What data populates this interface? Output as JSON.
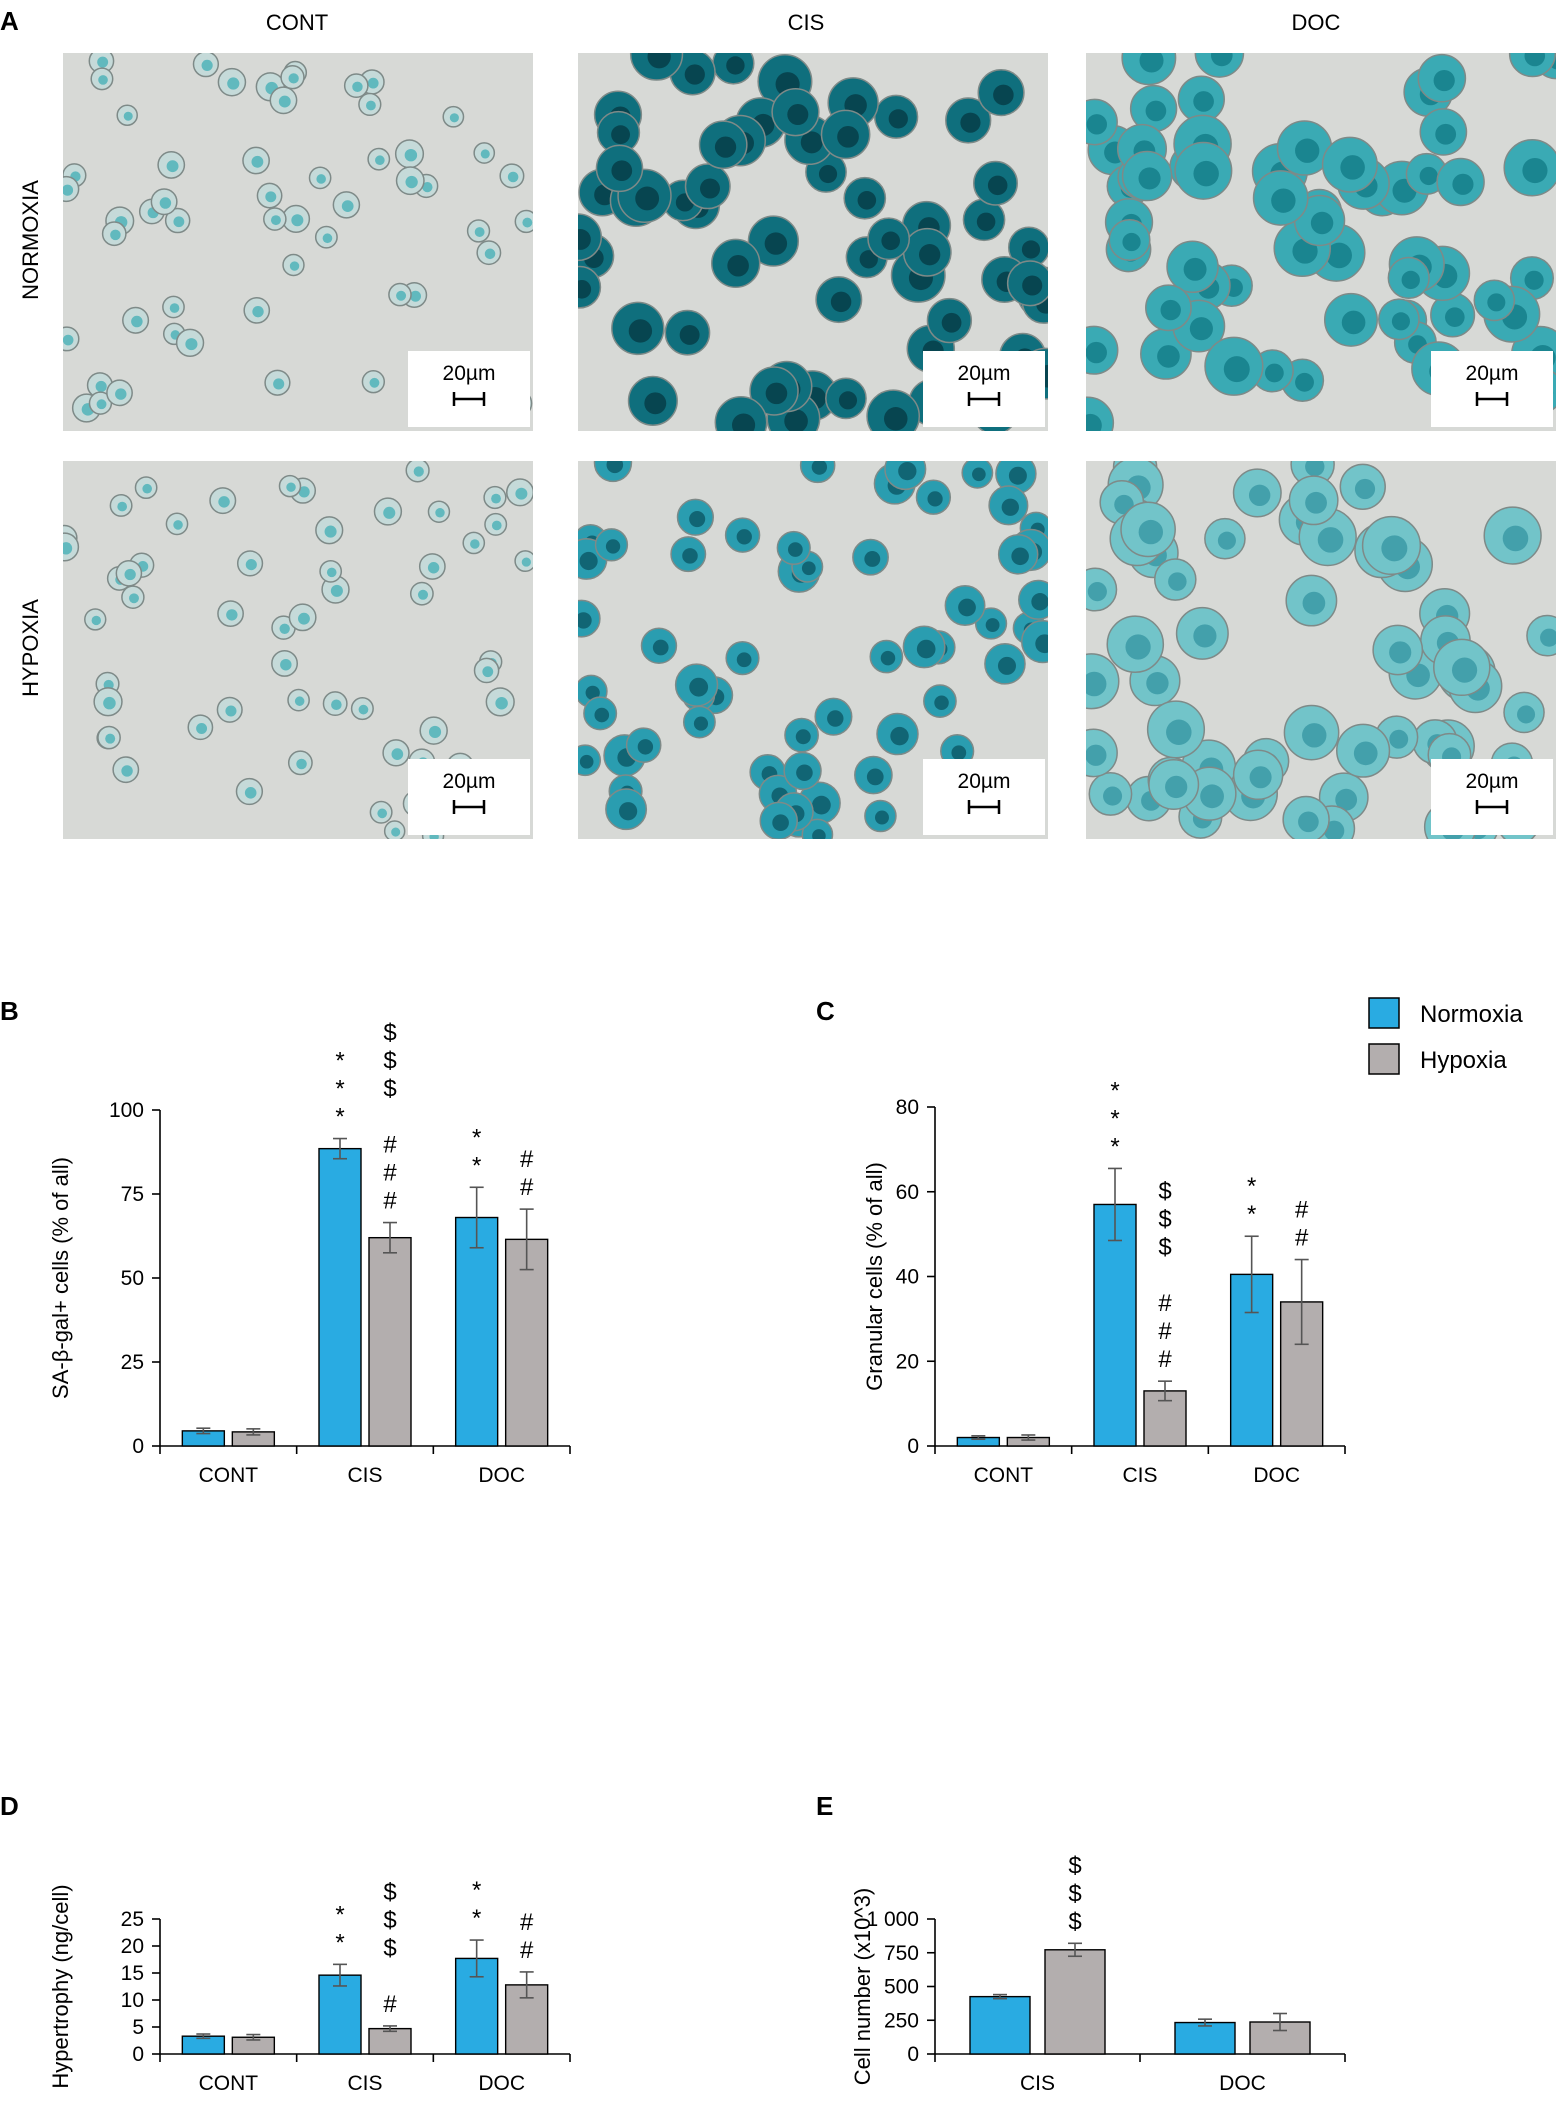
{
  "panel_a": {
    "letter": "A",
    "columns": [
      "CONT",
      "CIS",
      "DOC"
    ],
    "rows": [
      "NORMOXIA",
      "HYPOXIA"
    ],
    "scale_bar": "20µm"
  },
  "legend": {
    "entries": [
      "Normoxia",
      "Hypoxia"
    ]
  },
  "colors": {
    "normoxia": "#29ABE2",
    "hypoxia": "#B3AEAE",
    "stain_dark": "#0a4f5c",
    "stain_light": "#6cc4c9",
    "background_img": "#d7d9d6"
  },
  "chart_data": [
    {
      "id": "B",
      "letter": "B",
      "type": "bar",
      "ylabel": "SA-β-gal+ cells (% of all)",
      "categories": [
        "CONT",
        "CIS",
        "DOC"
      ],
      "ylim": [
        0,
        100
      ],
      "yticks": [
        0,
        25,
        50,
        75,
        100
      ],
      "ytick_labels": [
        "0",
        "25",
        "50",
        "75",
        "100"
      ],
      "series": [
        {
          "name": "Normoxia",
          "values": [
            4.5,
            88.5,
            68
          ],
          "errors": [
            0.8,
            3,
            9
          ]
        },
        {
          "name": "Hypoxia",
          "values": [
            4.2,
            62,
            61.5
          ],
          "errors": [
            0.9,
            4.5,
            9
          ]
        }
      ],
      "annotations": [
        {
          "cat": 1,
          "series": 0,
          "symbols": [
            "*",
            "*",
            "*"
          ]
        },
        {
          "cat": 1,
          "series": 1,
          "symbols": [
            "$",
            "$",
            "$",
            "",
            "#",
            "#",
            "#"
          ]
        },
        {
          "cat": 2,
          "series": 0,
          "symbols": [
            "*",
            "*"
          ]
        },
        {
          "cat": 2,
          "series": 1,
          "symbols": [
            "#",
            "#"
          ]
        }
      ]
    },
    {
      "id": "C",
      "letter": "C",
      "type": "bar",
      "ylabel": "Granular cells (% of all)",
      "categories": [
        "CONT",
        "CIS",
        "DOC"
      ],
      "ylim": [
        0,
        80
      ],
      "yticks": [
        0,
        20,
        40,
        60,
        80
      ],
      "ytick_labels": [
        "0",
        "20",
        "40",
        "60",
        "80"
      ],
      "series": [
        {
          "name": "Normoxia",
          "values": [
            2,
            57,
            40.5
          ],
          "errors": [
            0.4,
            8.5,
            9
          ]
        },
        {
          "name": "Hypoxia",
          "values": [
            2,
            13,
            34
          ],
          "errors": [
            0.6,
            2.3,
            10
          ]
        }
      ],
      "annotations": [
        {
          "cat": 1,
          "series": 0,
          "symbols": [
            "*",
            "*",
            "*"
          ]
        },
        {
          "cat": 1,
          "series": 1,
          "symbols": [
            "$",
            "$",
            "$",
            "",
            "#",
            "#",
            "#"
          ]
        },
        {
          "cat": 2,
          "series": 0,
          "symbols": [
            "*",
            "*"
          ]
        },
        {
          "cat": 2,
          "series": 1,
          "symbols": [
            "#",
            "#"
          ]
        }
      ]
    },
    {
      "id": "D",
      "letter": "D",
      "type": "bar",
      "ylabel": "Hypertrophy (ng/cell)",
      "categories": [
        "CONT",
        "CIS",
        "DOC"
      ],
      "ylim": [
        0,
        25
      ],
      "yticks": [
        0,
        5,
        10,
        15,
        20,
        25
      ],
      "ytick_labels": [
        "0",
        "5",
        "10",
        "15",
        "20",
        "25"
      ],
      "series": [
        {
          "name": "Normoxia",
          "values": [
            3.3,
            14.6,
            17.7
          ],
          "errors": [
            0.4,
            2,
            3.4
          ]
        },
        {
          "name": "Hypoxia",
          "values": [
            3.1,
            4.7,
            12.8
          ],
          "errors": [
            0.5,
            0.5,
            2.4
          ]
        }
      ],
      "annotations": [
        {
          "cat": 1,
          "series": 0,
          "symbols": [
            "*",
            "*"
          ]
        },
        {
          "cat": 1,
          "series": 1,
          "symbols": [
            "$",
            "$",
            "$",
            "",
            "#"
          ]
        },
        {
          "cat": 2,
          "series": 0,
          "symbols": [
            "*",
            "*"
          ]
        },
        {
          "cat": 2,
          "series": 1,
          "symbols": [
            "#",
            "#"
          ]
        }
      ]
    },
    {
      "id": "E",
      "letter": "E",
      "type": "bar",
      "ylabel": "Cell number (x10^3)",
      "categories": [
        "CIS",
        "DOC"
      ],
      "ylim": [
        0,
        1000
      ],
      "yticks": [
        0,
        250,
        500,
        750,
        1000
      ],
      "ytick_labels": [
        "0",
        "250",
        "500",
        "750",
        "1 000"
      ],
      "series": [
        {
          "name": "Normoxia",
          "values": [
            425,
            233
          ],
          "errors": [
            15,
            25
          ]
        },
        {
          "name": "Hypoxia",
          "values": [
            772,
            237
          ],
          "errors": [
            48,
            63
          ]
        }
      ],
      "annotations": [
        {
          "cat": 0,
          "series": 1,
          "symbols": [
            "$",
            "$",
            "$"
          ]
        }
      ]
    }
  ]
}
